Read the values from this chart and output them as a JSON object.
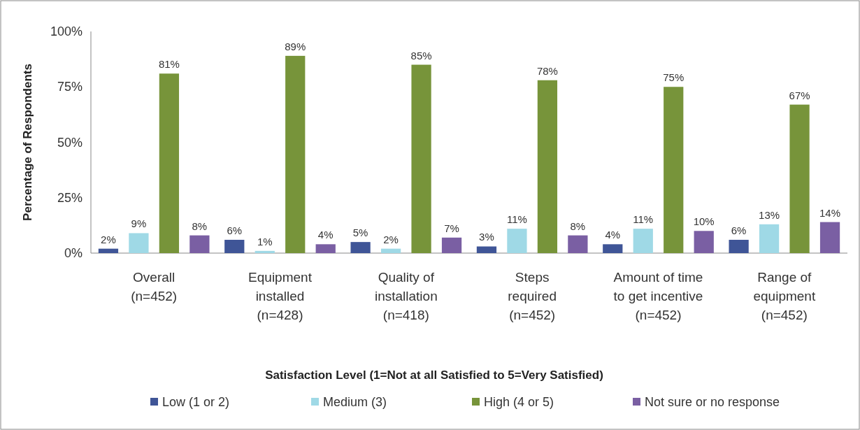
{
  "chart_data": {
    "type": "bar",
    "xlabel": "Satisfaction Level (1=Not at all Satisfied to 5=Very Satisfied)",
    "ylabel": "Percentage of Respondents",
    "categories": [
      "Overall\n(n=452)",
      "Equipment\ninstalled\n(n=428)",
      "Quality of\ninstallation\n(n=418)",
      "Steps\nrequired\n(n=452)",
      "Amount of time\nto get incentive\n(n=452)",
      "Range of\nequipment\n(n=452)"
    ],
    "series": [
      {
        "name": "Low (1 or 2)",
        "color": "#3f5597",
        "values": [
          2,
          6,
          5,
          3,
          4,
          6
        ],
        "value_labels": [
          "2%",
          "6%",
          "5%",
          "3%",
          "4%",
          "6%"
        ]
      },
      {
        "name": "Medium (3)",
        "color": "#9fd9e6",
        "values": [
          9,
          1,
          2,
          11,
          11,
          13
        ],
        "value_labels": [
          "9%",
          "1%",
          "2%",
          "11%",
          "11%",
          "13%"
        ]
      },
      {
        "name": "High (4 or 5)",
        "color": "#77943a",
        "values": [
          81,
          89,
          85,
          78,
          75,
          67
        ],
        "value_labels": [
          "81%",
          "89%",
          "85%",
          "78%",
          "75%",
          "67%"
        ]
      },
      {
        "name": "Not sure or no response",
        "color": "#7a5fa3",
        "values": [
          8,
          4,
          7,
          8,
          10,
          14
        ],
        "value_labels": [
          "8%",
          "4%",
          "7%",
          "8%",
          "10%",
          "14%"
        ]
      }
    ],
    "ylim": [
      0,
      100
    ],
    "yticks": [
      {
        "value": 0,
        "label": "0%"
      },
      {
        "value": 25,
        "label": "25%"
      },
      {
        "value": 50,
        "label": "50%"
      },
      {
        "value": 75,
        "label": "75%"
      },
      {
        "value": 100,
        "label": "100%"
      }
    ],
    "legend": "bottom"
  }
}
